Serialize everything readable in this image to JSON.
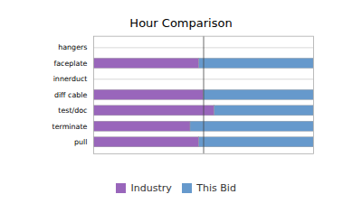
{
  "chart_data": {
    "type": "bar",
    "orientation": "horizontal",
    "stacked": true,
    "title": "Hour Comparison",
    "categories": [
      "hangers",
      "faceplate",
      "innerduct",
      "diff cable",
      "test/doc",
      "terminate",
      "pull"
    ],
    "series": [
      {
        "name": "Industry",
        "color": "#9966bb",
        "values": [
          0,
          48,
          0,
          50,
          55,
          44,
          48
        ]
      },
      {
        "name": "This Bid",
        "color": "#6699cc",
        "values": [
          0,
          52,
          0,
          50,
          45,
          56,
          52
        ]
      }
    ],
    "xlim": [
      0,
      100
    ],
    "xticks": [],
    "vline": 50,
    "grid": true,
    "legend": "bottom",
    "tick_labels": "y"
  }
}
